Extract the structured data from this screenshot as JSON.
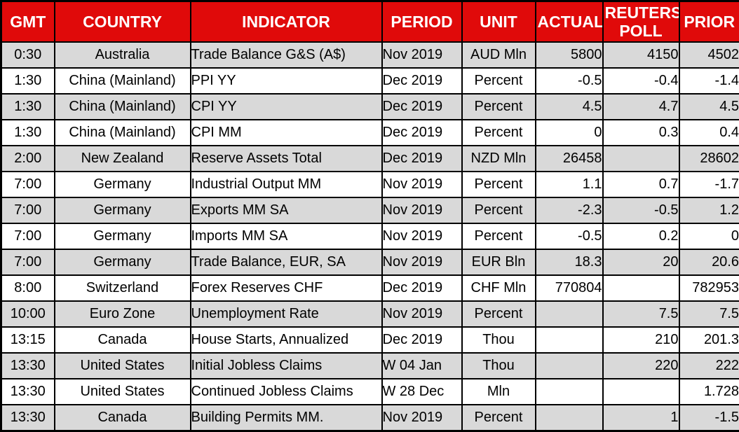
{
  "chart_data": {
    "type": "table",
    "columns": [
      "GMT",
      "COUNTRY",
      "INDICATOR",
      "PERIOD",
      "UNIT",
      "ACTUAL",
      "REUTERS POLL",
      "PRIOR"
    ],
    "rows": [
      [
        "0:30",
        "Australia",
        "Trade Balance G&S (A$)",
        "Nov 2019",
        "AUD Mln",
        "5800",
        "4150",
        "4502"
      ],
      [
        "1:30",
        "China (Mainland)",
        "PPI YY",
        "Dec 2019",
        "Percent",
        "-0.5",
        "-0.4",
        "-1.4"
      ],
      [
        "1:30",
        "China (Mainland)",
        "CPI YY",
        "Dec 2019",
        "Percent",
        "4.5",
        "4.7",
        "4.5"
      ],
      [
        "1:30",
        "China (Mainland)",
        "CPI MM",
        "Dec 2019",
        "Percent",
        "0",
        "0.3",
        "0.4"
      ],
      [
        "2:00",
        "New Zealand",
        "Reserve Assets Total",
        "Dec 2019",
        "NZD Mln",
        "26458",
        "",
        "28602"
      ],
      [
        "7:00",
        "Germany",
        "Industrial Output MM",
        "Nov 2019",
        "Percent",
        "1.1",
        "0.7",
        "-1.7"
      ],
      [
        "7:00",
        "Germany",
        "Exports MM SA",
        "Nov 2019",
        "Percent",
        "-2.3",
        "-0.5",
        "1.2"
      ],
      [
        "7:00",
        "Germany",
        "Imports MM SA",
        "Nov 2019",
        "Percent",
        "-0.5",
        "0.2",
        "0"
      ],
      [
        "7:00",
        "Germany",
        "Trade Balance, EUR, SA",
        "Nov 2019",
        "EUR Bln",
        "18.3",
        "20",
        "20.6"
      ],
      [
        "8:00",
        "Switzerland",
        "Forex Reserves CHF",
        "Dec 2019",
        "CHF Mln",
        "770804",
        "",
        "782953"
      ],
      [
        "10:00",
        "Euro Zone",
        "Unemployment Rate",
        "Nov 2019",
        "Percent",
        "",
        "7.5",
        "7.5"
      ],
      [
        "13:15",
        "Canada",
        "House Starts, Annualized",
        "Dec 2019",
        "Thou",
        "",
        "210",
        "201.3"
      ],
      [
        "13:30",
        "United States",
        "Initial Jobless Claims",
        "W 04 Jan",
        "Thou",
        "",
        "220",
        "222"
      ],
      [
        "13:30",
        "United States",
        "Continued Jobless Claims",
        "W 28 Dec",
        "Mln",
        "",
        "",
        "1.728"
      ],
      [
        "13:30",
        "Canada",
        "Building Permits MM.",
        "Nov 2019",
        "Percent",
        "",
        "1",
        "-1.5"
      ]
    ],
    "layout_hints": {
      "striped": true,
      "first_data_row_shaded": true,
      "column_alignment": [
        "center",
        "center",
        "left",
        "left",
        "center",
        "right",
        "right",
        "right"
      ],
      "grid": "all-borders"
    }
  },
  "colors": {
    "header_bg": "#E00A0A",
    "header_text": "#FFFFFF",
    "row_shade": "#D9D9D9",
    "row_plain": "#FFFFFF",
    "border": "#000000",
    "cell_text": "#000000"
  }
}
